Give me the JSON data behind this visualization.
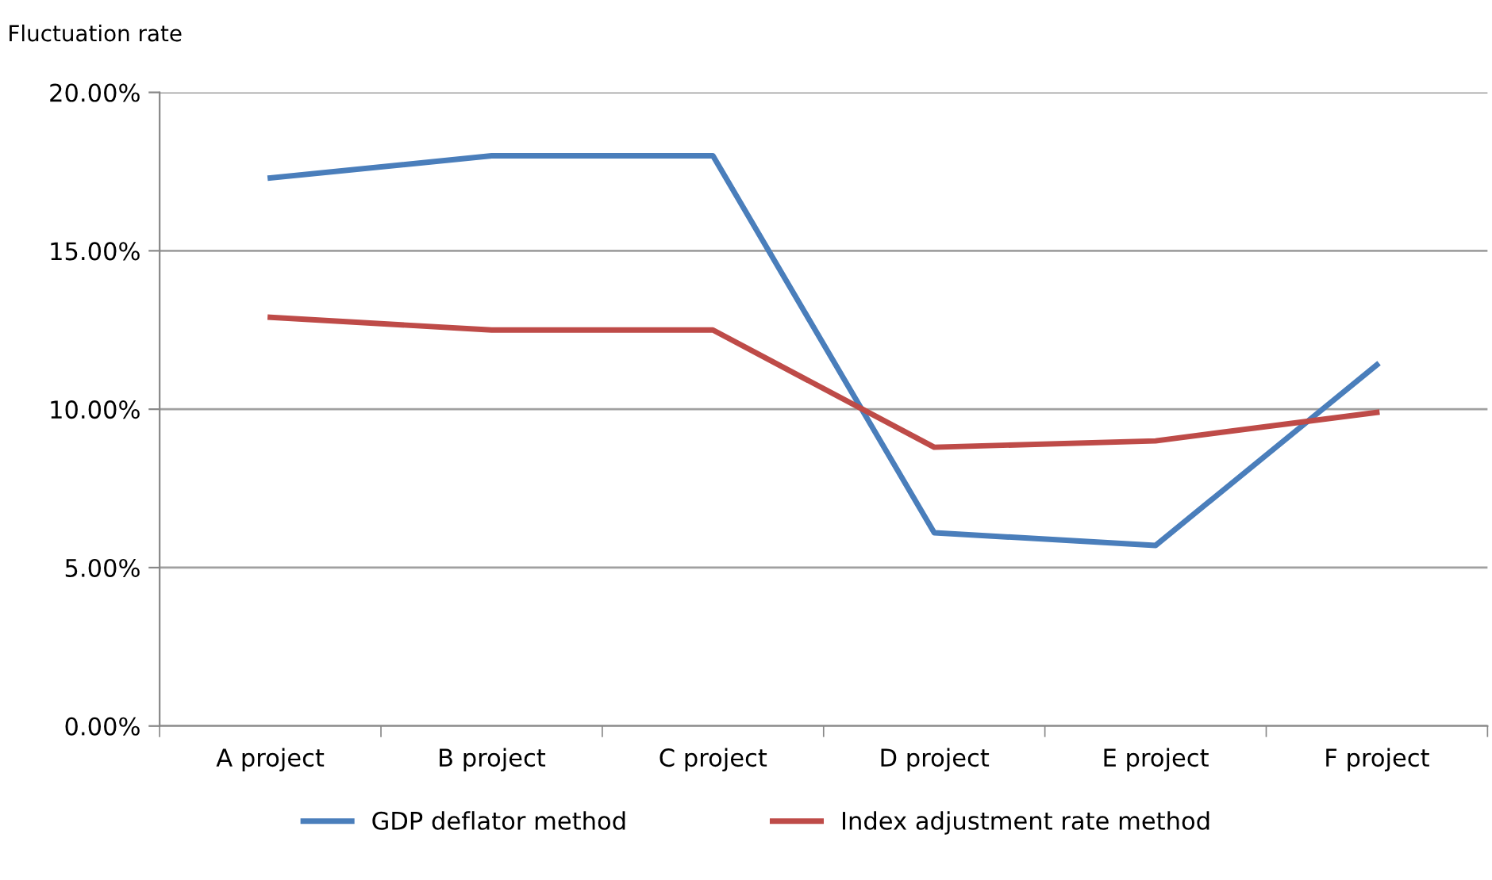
{
  "chart_data": {
    "type": "line",
    "ylabel": "Fluctuation rate",
    "categories": [
      "A project",
      "B project",
      "C project",
      "D project",
      "E project",
      "F project"
    ],
    "series": [
      {
        "name": "GDP deflator method",
        "color": "#4a7ebb",
        "values": [
          17.3,
          18.0,
          18.0,
          6.1,
          5.7,
          11.4
        ]
      },
      {
        "name": "Index adjustment rate method",
        "color": "#be4b48",
        "values": [
          12.9,
          12.5,
          12.5,
          8.8,
          9.0,
          9.9
        ]
      }
    ],
    "ylim": [
      0,
      20
    ],
    "yticks": [
      {
        "value": 0,
        "label": "0.00%"
      },
      {
        "value": 5,
        "label": "5.00%"
      },
      {
        "value": 10,
        "label": "10.00%"
      },
      {
        "value": 15,
        "label": "15.00%"
      },
      {
        "value": 20,
        "label": "20.00%"
      }
    ],
    "grid": "y",
    "legend": "bottom",
    "marker": "none",
    "line_style": "solid"
  }
}
